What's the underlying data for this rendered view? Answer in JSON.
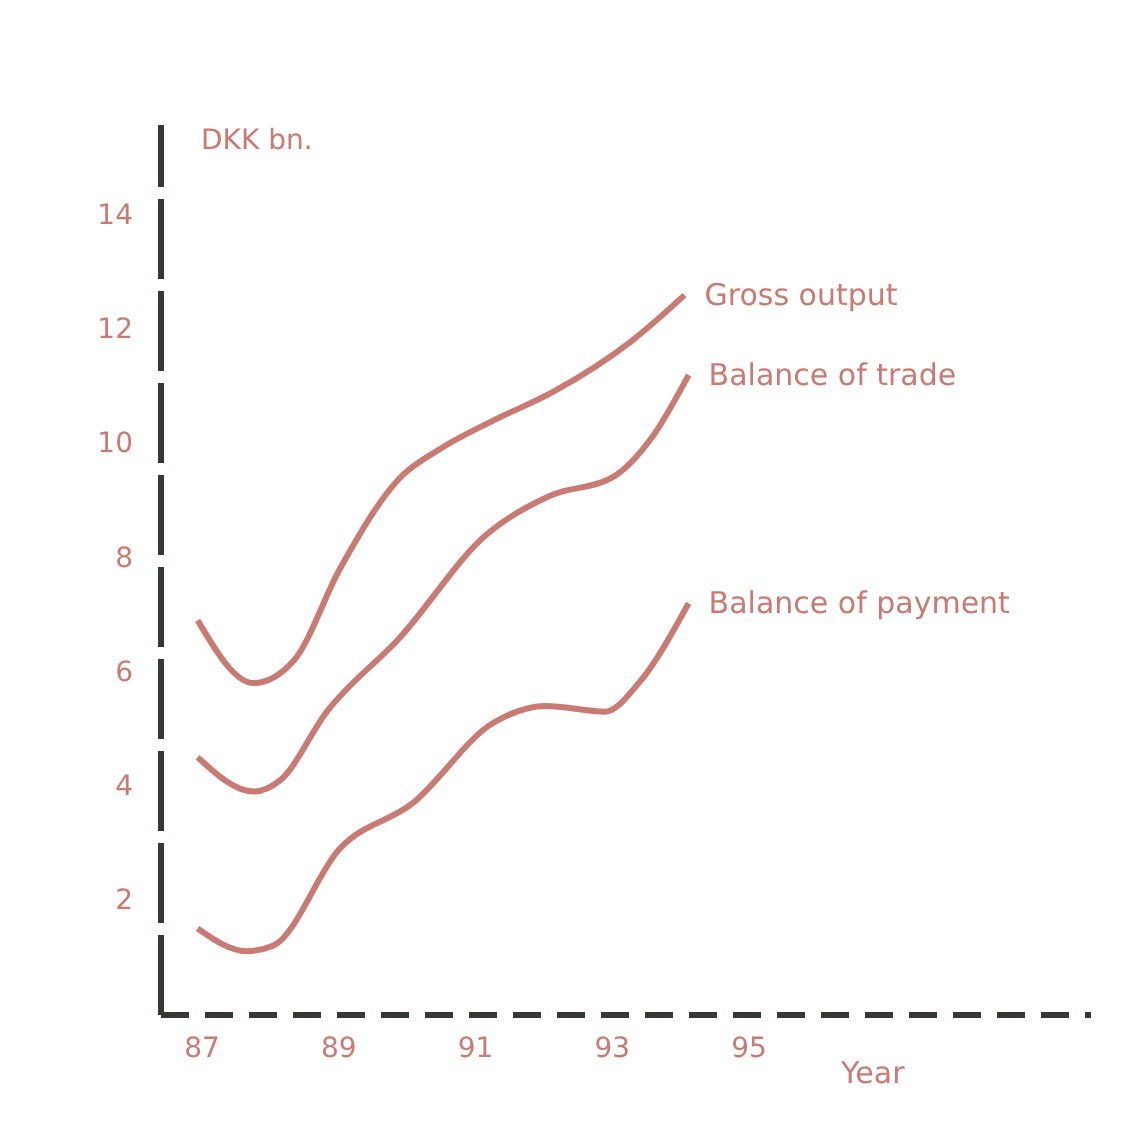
{
  "chart_data": {
    "type": "line",
    "xlabel": "Year",
    "ylabel": "DKK bn.",
    "xlim": [
      86.4,
      100
    ],
    "xticks": [
      {
        "value": 87,
        "label": "87"
      },
      {
        "value": 89,
        "label": "89"
      },
      {
        "value": 91,
        "label": "91"
      },
      {
        "value": 93,
        "label": "93"
      },
      {
        "value": 95,
        "label": "95"
      }
    ],
    "ylim": [
      0,
      15.6
    ],
    "yticks": [
      2,
      4,
      6,
      8,
      10,
      12,
      14
    ],
    "grid": false,
    "legend": false,
    "marker": "none",
    "line_style": "solid",
    "series": [
      {
        "name": "Gross output",
        "color": "#c97a72",
        "x": [
          86.95,
          87.77,
          88.36,
          89.03,
          89.91,
          90.49,
          91.27,
          92.14,
          93.3,
          94.07
        ],
        "values": [
          6.9,
          5.8,
          6.2,
          7.8,
          9.4,
          9.9,
          10.4,
          10.9,
          11.8,
          12.6
        ]
      },
      {
        "name": "Balance of trade",
        "color": "#c97a72",
        "x": [
          86.95,
          87.77,
          88.16,
          88.84,
          89.91,
          91.17,
          92.14,
          93.01,
          93.59,
          94.13
        ],
        "values": [
          4.5,
          3.9,
          4.1,
          5.3,
          6.6,
          8.4,
          9.1,
          9.4,
          10.1,
          11.2
        ]
      },
      {
        "name": "Balance of payment",
        "color": "#c97a72",
        "x": [
          86.95,
          87.67,
          88.06,
          89.03,
          90.1,
          91.27,
          92.04,
          92.91,
          93.4,
          94.13
        ],
        "values": [
          1.5,
          1.1,
          1.2,
          2.9,
          3.7,
          5.1,
          5.4,
          5.3,
          5.8,
          7.2
        ]
      }
    ]
  }
}
